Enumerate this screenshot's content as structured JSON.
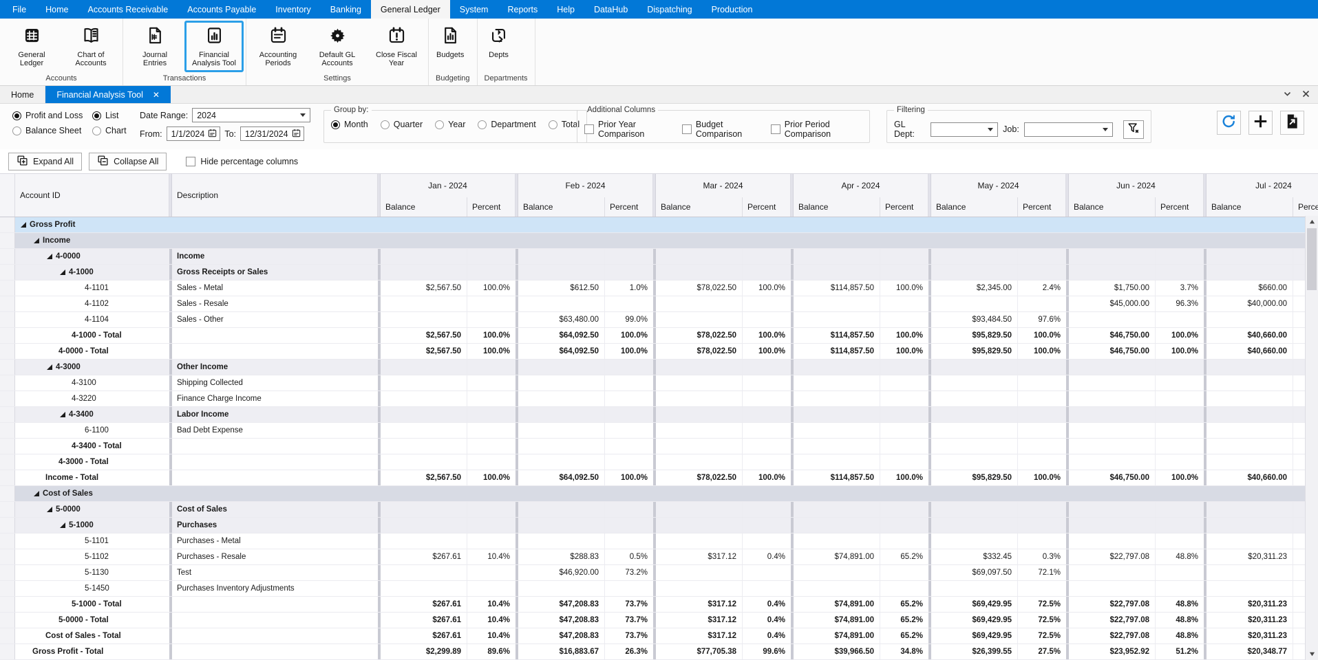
{
  "menu": {
    "items": [
      "File",
      "Home",
      "Accounts Receivable",
      "Accounts Payable",
      "Inventory",
      "Banking",
      "General Ledger",
      "System",
      "Reports",
      "Help",
      "DataHub",
      "Dispatching",
      "Production"
    ],
    "active": "General Ledger"
  },
  "ribbon": {
    "groups": [
      {
        "label": "Accounts",
        "buttons": [
          {
            "label": "General Ledger",
            "icon": "ledger-grid-icon"
          },
          {
            "label": "Chart of Accounts",
            "icon": "open-book-icon"
          }
        ]
      },
      {
        "label": "Transactions",
        "buttons": [
          {
            "label": "Journal Entries",
            "icon": "journal-document-icon"
          },
          {
            "label": "Financial Analysis Tool",
            "icon": "bar-chart-icon",
            "active": true
          }
        ]
      },
      {
        "label": "Settings",
        "buttons": [
          {
            "label": "Accounting Periods",
            "icon": "calendar-icon"
          },
          {
            "label": "Default GL Accounts",
            "icon": "gear-icon"
          },
          {
            "label": "Close Fiscal Year",
            "icon": "calendar-alert-icon"
          }
        ]
      },
      {
        "label": "Budgeting",
        "buttons": [
          {
            "label": "Budgets",
            "icon": "budget-document-icon"
          }
        ]
      },
      {
        "label": "Departments",
        "buttons": [
          {
            "label": "Depts",
            "icon": "sync-loop-icon"
          }
        ]
      }
    ]
  },
  "tabstrip": {
    "tabs": [
      {
        "label": "Home",
        "active": false,
        "closable": false
      },
      {
        "label": "Financial Analysis Tool",
        "active": true,
        "closable": true,
        "close_glyph": "✕"
      }
    ]
  },
  "options": {
    "report_type": {
      "options": [
        "Profit and Loss",
        "Balance Sheet"
      ],
      "selected": "Profit and Loss"
    },
    "view_mode": {
      "options": [
        "List",
        "Chart"
      ],
      "selected": "List"
    },
    "date_range": {
      "label": "Date Range:",
      "value": "2024",
      "from_label": "From:",
      "from": "1/1/2024",
      "to_label": "To:",
      "to": "12/31/2024"
    },
    "group_by": {
      "legend": "Group by:",
      "options": [
        "Month",
        "Quarter",
        "Year",
        "Department",
        "Total"
      ],
      "selected": "Month"
    },
    "additional_columns": {
      "legend": "Additional Columns",
      "options": [
        "Prior Year Comparison",
        "Budget Comparison",
        "Prior Period Comparison"
      ],
      "checked": []
    },
    "filtering": {
      "legend": "Filtering",
      "gl_dept_label": "GL Dept:",
      "gl_dept_value": "",
      "job_label": "Job:",
      "job_value": ""
    },
    "action_icons": [
      "refresh-icon",
      "plus-icon",
      "export-document-icon"
    ]
  },
  "toolbar": {
    "expand_all": "Expand All",
    "collapse_all": "Collapse All",
    "hide_pct_label": "Hide percentage columns",
    "hide_pct_checked": false
  },
  "grid": {
    "headers": {
      "account": "Account ID",
      "description": "Description",
      "balance": "Balance",
      "percent": "Percent"
    },
    "months": [
      "Jan - 2024",
      "Feb - 2024",
      "Mar - 2024",
      "Apr - 2024",
      "May - 2024",
      "Jun - 2024",
      "Jul - 2024"
    ],
    "rows": [
      {
        "type": "band-selected",
        "level": 0,
        "account": "Gross Profit",
        "description": "",
        "expandable": true
      },
      {
        "type": "band",
        "level": 1,
        "account": "Income",
        "description": "",
        "expandable": true
      },
      {
        "type": "group",
        "level": 2,
        "account": "4-0000",
        "description": "Income",
        "expandable": true
      },
      {
        "type": "group",
        "level": 3,
        "account": "4-1000",
        "description": "Gross Receipts or Sales",
        "expandable": true
      },
      {
        "type": "leaf",
        "level": 4,
        "account": "4-1101",
        "description": "Sales - Metal",
        "values": [
          [
            "$2,567.50",
            "100.0%"
          ],
          [
            "$612.50",
            "1.0%"
          ],
          [
            "$78,022.50",
            "100.0%"
          ],
          [
            "$114,857.50",
            "100.0%"
          ],
          [
            "$2,345.00",
            "2.4%"
          ],
          [
            "$1,750.00",
            "3.7%"
          ],
          [
            "$660.00",
            ""
          ]
        ]
      },
      {
        "type": "leaf",
        "level": 4,
        "account": "4-1102",
        "description": "Sales - Resale",
        "values": [
          [
            "",
            ""
          ],
          [
            "",
            ""
          ],
          [
            "",
            ""
          ],
          [
            "",
            ""
          ],
          [
            "",
            ""
          ],
          [
            "$45,000.00",
            "96.3%"
          ],
          [
            "$40,000.00",
            ""
          ]
        ]
      },
      {
        "type": "leaf",
        "level": 4,
        "account": "4-1104",
        "description": "Sales - Other",
        "values": [
          [
            "",
            ""
          ],
          [
            "$63,480.00",
            "99.0%"
          ],
          [
            "",
            ""
          ],
          [
            "",
            ""
          ],
          [
            "$93,484.50",
            "97.6%"
          ],
          [
            "",
            ""
          ],
          [
            "",
            ""
          ]
        ]
      },
      {
        "type": "total",
        "level": 3,
        "account": "4-1000 - Total",
        "description": "",
        "values": [
          [
            "$2,567.50",
            "100.0%"
          ],
          [
            "$64,092.50",
            "100.0%"
          ],
          [
            "$78,022.50",
            "100.0%"
          ],
          [
            "$114,857.50",
            "100.0%"
          ],
          [
            "$95,829.50",
            "100.0%"
          ],
          [
            "$46,750.00",
            "100.0%"
          ],
          [
            "$40,660.00",
            ""
          ]
        ]
      },
      {
        "type": "total",
        "level": 2,
        "account": "4-0000 - Total",
        "description": "",
        "values": [
          [
            "$2,567.50",
            "100.0%"
          ],
          [
            "$64,092.50",
            "100.0%"
          ],
          [
            "$78,022.50",
            "100.0%"
          ],
          [
            "$114,857.50",
            "100.0%"
          ],
          [
            "$95,829.50",
            "100.0%"
          ],
          [
            "$46,750.00",
            "100.0%"
          ],
          [
            "$40,660.00",
            ""
          ]
        ]
      },
      {
        "type": "group",
        "level": 2,
        "account": "4-3000",
        "description": "Other Income",
        "expandable": true
      },
      {
        "type": "leaf",
        "level": 3,
        "account": "4-3100",
        "description": "Shipping Collected"
      },
      {
        "type": "leaf",
        "level": 3,
        "account": "4-3220",
        "description": "Finance Charge Income"
      },
      {
        "type": "group",
        "level": 3,
        "account": "4-3400",
        "description": "Labor Income",
        "expandable": true
      },
      {
        "type": "leaf",
        "level": 4,
        "account": "6-1100",
        "description": "Bad Debt Expense"
      },
      {
        "type": "total",
        "level": 3,
        "account": "4-3400 - Total",
        "description": ""
      },
      {
        "type": "total",
        "level": 2,
        "account": "4-3000 - Total",
        "description": ""
      },
      {
        "type": "total",
        "level": 1,
        "account": "Income - Total",
        "description": "",
        "values": [
          [
            "$2,567.50",
            "100.0%"
          ],
          [
            "$64,092.50",
            "100.0%"
          ],
          [
            "$78,022.50",
            "100.0%"
          ],
          [
            "$114,857.50",
            "100.0%"
          ],
          [
            "$95,829.50",
            "100.0%"
          ],
          [
            "$46,750.00",
            "100.0%"
          ],
          [
            "$40,660.00",
            ""
          ]
        ]
      },
      {
        "type": "band",
        "level": 1,
        "account": "Cost of Sales",
        "description": "",
        "expandable": true
      },
      {
        "type": "group",
        "level": 2,
        "account": "5-0000",
        "description": "Cost of Sales",
        "expandable": true
      },
      {
        "type": "group",
        "level": 3,
        "account": "5-1000",
        "description": "Purchases",
        "expandable": true
      },
      {
        "type": "leaf",
        "level": 4,
        "account": "5-1101",
        "description": "Purchases - Metal"
      },
      {
        "type": "leaf",
        "level": 4,
        "account": "5-1102",
        "description": "Purchases - Resale",
        "values": [
          [
            "$267.61",
            "10.4%"
          ],
          [
            "$288.83",
            "0.5%"
          ],
          [
            "$317.12",
            "0.4%"
          ],
          [
            "$74,891.00",
            "65.2%"
          ],
          [
            "$332.45",
            "0.3%"
          ],
          [
            "$22,797.08",
            "48.8%"
          ],
          [
            "$20,311.23",
            ""
          ]
        ]
      },
      {
        "type": "leaf",
        "level": 4,
        "account": "5-1130",
        "description": "Test",
        "values": [
          [
            "",
            ""
          ],
          [
            "$46,920.00",
            "73.2%"
          ],
          [
            "",
            ""
          ],
          [
            "",
            ""
          ],
          [
            "$69,097.50",
            "72.1%"
          ],
          [
            "",
            ""
          ],
          [
            "",
            ""
          ]
        ]
      },
      {
        "type": "leaf",
        "level": 4,
        "account": "5-1450",
        "description": "Purchases Inventory Adjustments"
      },
      {
        "type": "total",
        "level": 3,
        "account": "5-1000 - Total",
        "description": "",
        "values": [
          [
            "$267.61",
            "10.4%"
          ],
          [
            "$47,208.83",
            "73.7%"
          ],
          [
            "$317.12",
            "0.4%"
          ],
          [
            "$74,891.00",
            "65.2%"
          ],
          [
            "$69,429.95",
            "72.5%"
          ],
          [
            "$22,797.08",
            "48.8%"
          ],
          [
            "$20,311.23",
            ""
          ]
        ]
      },
      {
        "type": "total",
        "level": 2,
        "account": "5-0000 - Total",
        "description": "",
        "values": [
          [
            "$267.61",
            "10.4%"
          ],
          [
            "$47,208.83",
            "73.7%"
          ],
          [
            "$317.12",
            "0.4%"
          ],
          [
            "$74,891.00",
            "65.2%"
          ],
          [
            "$69,429.95",
            "72.5%"
          ],
          [
            "$22,797.08",
            "48.8%"
          ],
          [
            "$20,311.23",
            ""
          ]
        ]
      },
      {
        "type": "total",
        "level": 1,
        "account": "Cost of Sales - Total",
        "description": "",
        "values": [
          [
            "$267.61",
            "10.4%"
          ],
          [
            "$47,208.83",
            "73.7%"
          ],
          [
            "$317.12",
            "0.4%"
          ],
          [
            "$74,891.00",
            "65.2%"
          ],
          [
            "$69,429.95",
            "72.5%"
          ],
          [
            "$22,797.08",
            "48.8%"
          ],
          [
            "$20,311.23",
            ""
          ]
        ]
      },
      {
        "type": "total",
        "level": 0,
        "account": "Gross Profit - Total",
        "description": "",
        "values": [
          [
            "$2,299.89",
            "89.6%"
          ],
          [
            "$16,883.67",
            "26.3%"
          ],
          [
            "$77,705.38",
            "99.6%"
          ],
          [
            "$39,966.50",
            "34.8%"
          ],
          [
            "$26,399.55",
            "27.5%"
          ],
          [
            "$23,952.92",
            "51.2%"
          ],
          [
            "$20,348.77",
            ""
          ]
        ]
      },
      {
        "type": "band",
        "level": 1,
        "account": "",
        "description": ""
      }
    ]
  },
  "colors": {
    "accent": "#0278d7",
    "selected_row": "#cfe4f7",
    "group_band": "#d8dbe4",
    "ribbon_highlight": "#2b9fe8"
  }
}
